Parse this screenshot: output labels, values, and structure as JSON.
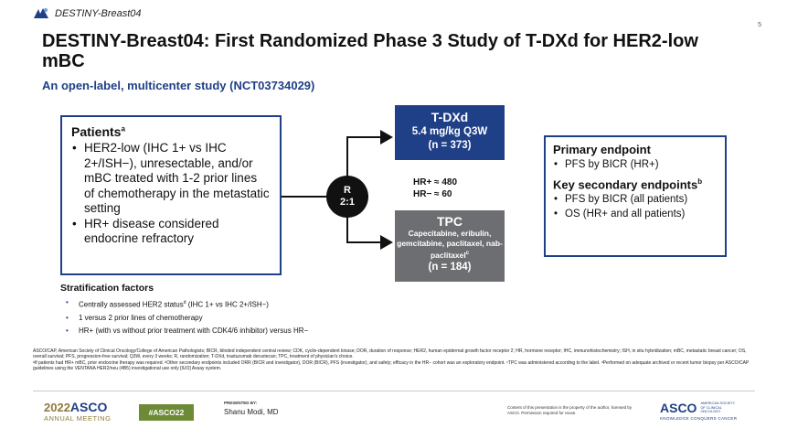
{
  "header": {
    "brand": "DESTINY-Breast04",
    "page_number": "5",
    "title": "DESTINY-Breast04: First Randomized Phase 3 Study of T-DXd for HER2-low mBC",
    "subtitle": "An open-label, multicenter study (NCT03734029)"
  },
  "patients": {
    "title": "Patients",
    "title_sup": "a",
    "bullets": [
      "HER2-low (IHC 1+ vs IHC 2+/ISH−), unresectable, and/or mBC treated with 1-2 prior lines of chemotherapy in the metastatic setting",
      "HR+ disease considered endocrine refractory"
    ]
  },
  "randomization": {
    "line1": "R",
    "line2": "2:1"
  },
  "arms": {
    "tdxd": {
      "name": "T-DXd",
      "dose": "5.4 mg/kg Q3W",
      "n": "(n = 373)"
    },
    "tpc": {
      "name": "TPC",
      "drugs": "Capecitabine, eribulin, gemcitabine, paclitaxel, nab-paclitaxel",
      "drugs_sup": "c",
      "n": "(n = 184)"
    }
  },
  "hr_counts": {
    "hr_pos": "HR+ ≈ 480",
    "hr_neg": "HR− ≈ 60"
  },
  "endpoints": {
    "primary_title": "Primary endpoint",
    "primary_items": [
      "PFS by BICR (HR+)"
    ],
    "secondary_title": "Key secondary endpoints",
    "secondary_sup": "b",
    "secondary_items": [
      "PFS by BICR (all patients)",
      "OS (HR+ and all patients)"
    ]
  },
  "stratification": {
    "title": "Stratification factors",
    "items": [
      {
        "text": "Centrally assessed HER2 status",
        "sup": "d",
        "rest": " (IHC 1+ vs IHC 2+/ISH−)"
      },
      {
        "text": "1 versus 2 prior lines of chemotherapy",
        "sup": "",
        "rest": ""
      },
      {
        "text": "HR+ (with vs without prior treatment with CDK4/6 inhibitor) versus HR−",
        "sup": "",
        "rest": ""
      }
    ]
  },
  "footnotes": {
    "abbrev": "ASCO/CAP, American Society of Clinical Oncology/College of American Pathologists; BICR, blinded independent central review; CDK, cyclin-dependent kinase; DOR, duration of response; HER2, human epidermal growth factor receptor 2; HR, hormone receptor; IHC, immunohistochemistry; ISH, in situ hybridization; mBC, metastatic breast cancer; OS, overall survival; PFS, progression-free survival; Q3W, every 3 weeks; R, randomization; T-DXd, trastuzumab deruxtecan; TPC, treatment of physician's choice.",
    "notes": "ᵃIf patients had HR+ mBC, prior endocrine therapy was required. ᵇOther secondary endpoints included ORR (BICR and investigator), DOR (BICR), PFS (investigator), and safety; efficacy in the HR− cohort was an exploratory endpoint. ᶜTPC was administered according to the label. ᵈPerformed on adequate archived or recent tumor biopsy per ASCO/CAP guidelines using the VENTANA HER2/neu (4B5) investigational use only [IUO] Assay system."
  },
  "footer": {
    "year": "2022",
    "asco": "ASCO",
    "meeting": "ANNUAL MEETING",
    "hashtag": "#ASCO22",
    "presented_label": "PRESENTED BY:",
    "presenter": "Shanu Modi, MD",
    "content_note": "Content of this presentation is the property of the author, licensed by ASCO. Permission required for reuse.",
    "asco_logo": "ASCO",
    "society": "AMERICAN SOCIETY OF CLINICAL ONCOLOGY",
    "tagline": "KNOWLEDGE CONQUERS CANCER"
  },
  "colors": {
    "navy": "#1f3f87",
    "gray": "#6d6e71",
    "green": "#6d8a37",
    "gold": "#8c7b3a"
  }
}
